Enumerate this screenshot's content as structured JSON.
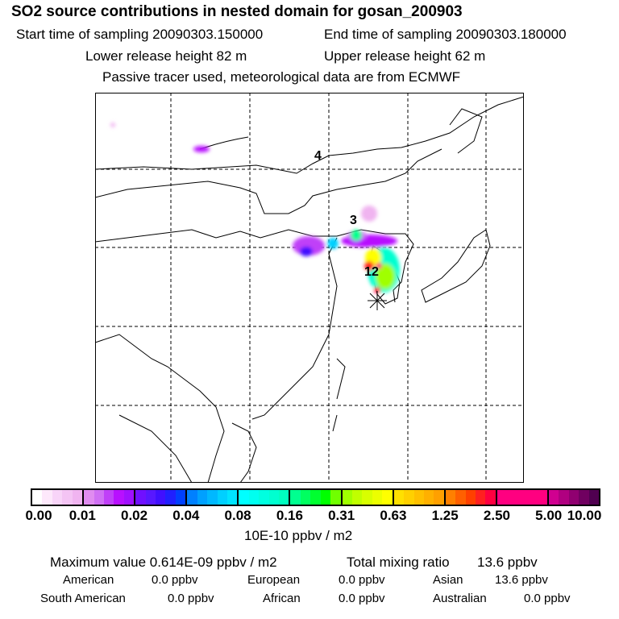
{
  "chart_data": {
    "type": "heatmap",
    "title": "SO2 source contributions in nested domain for gosan_200903",
    "subtitle_lines": {
      "start_label": "Start time of sampling 20090303.150000",
      "end_label": "End time of sampling 20090303.180000",
      "lower_label": "Lower release height   82 m",
      "upper_label": "Upper release height   62 m",
      "note": "Passive tracer used, meteorological data are from ECMWF"
    },
    "map_labels": [
      "4",
      "3",
      "1",
      "2"
    ],
    "colorbar": {
      "unit_label": "10E-10 ppbv / m2",
      "ticks": [
        "0.00",
        "0.01",
        "0.02",
        "0.04",
        "0.08",
        "0.16",
        "0.31",
        "0.63",
        "1.25",
        "2.50",
        "5.00",
        "10.00"
      ],
      "segments": [
        [
          "#ffffff",
          "#fde8fb",
          "#f8d4f8",
          "#f4c4f4",
          "#f0b4f0"
        ],
        [
          "#e08cf0",
          "#d070f4",
          "#c040f8",
          "#b810ff",
          "#a010ff"
        ],
        [
          "#7010ff",
          "#5818ff",
          "#4010ff",
          "#2020ff",
          "#0040ff"
        ],
        [
          "#0080ff",
          "#00a0ff",
          "#00b8ff",
          "#00d0ff",
          "#00e4ff"
        ],
        [
          "#00ffff",
          "#00fff0",
          "#00ffe0",
          "#00ffd0",
          "#00ffc0"
        ],
        [
          "#00ff90",
          "#00ff60",
          "#00ff30",
          "#00ff00",
          "#70ff00"
        ],
        [
          "#a0ff00",
          "#c0ff00",
          "#d8ff00",
          "#ecff00",
          "#ffff00"
        ],
        [
          "#ffe000",
          "#ffd000",
          "#ffc000",
          "#ffb000",
          "#ffa000"
        ],
        [
          "#ff8000",
          "#ff6000",
          "#ff4000",
          "#ff2020",
          "#ff0040"
        ],
        [
          "#ff0080",
          "#ff0080",
          "#ff0080",
          "#ff0080",
          "#ff0080"
        ],
        [
          "#d00090",
          "#b00080",
          "#900070",
          "#700060",
          "#500050"
        ]
      ]
    }
  },
  "summary": {
    "max_label": "Maximum value  0.614E-09 ppbv / m2",
    "total_label": "Total mixing ratio",
    "total_value": "13.6 ppbv",
    "regions": [
      {
        "name": "American",
        "value": "0.0 ppbv"
      },
      {
        "name": "European",
        "value": "0.0 ppbv"
      },
      {
        "name": "Asian",
        "value": "13.6 ppbv"
      },
      {
        "name": "South American",
        "value": "0.0 ppbv"
      },
      {
        "name": "African",
        "value": "0.0 ppbv"
      },
      {
        "name": "Australian",
        "value": "0.0 ppbv"
      }
    ]
  }
}
